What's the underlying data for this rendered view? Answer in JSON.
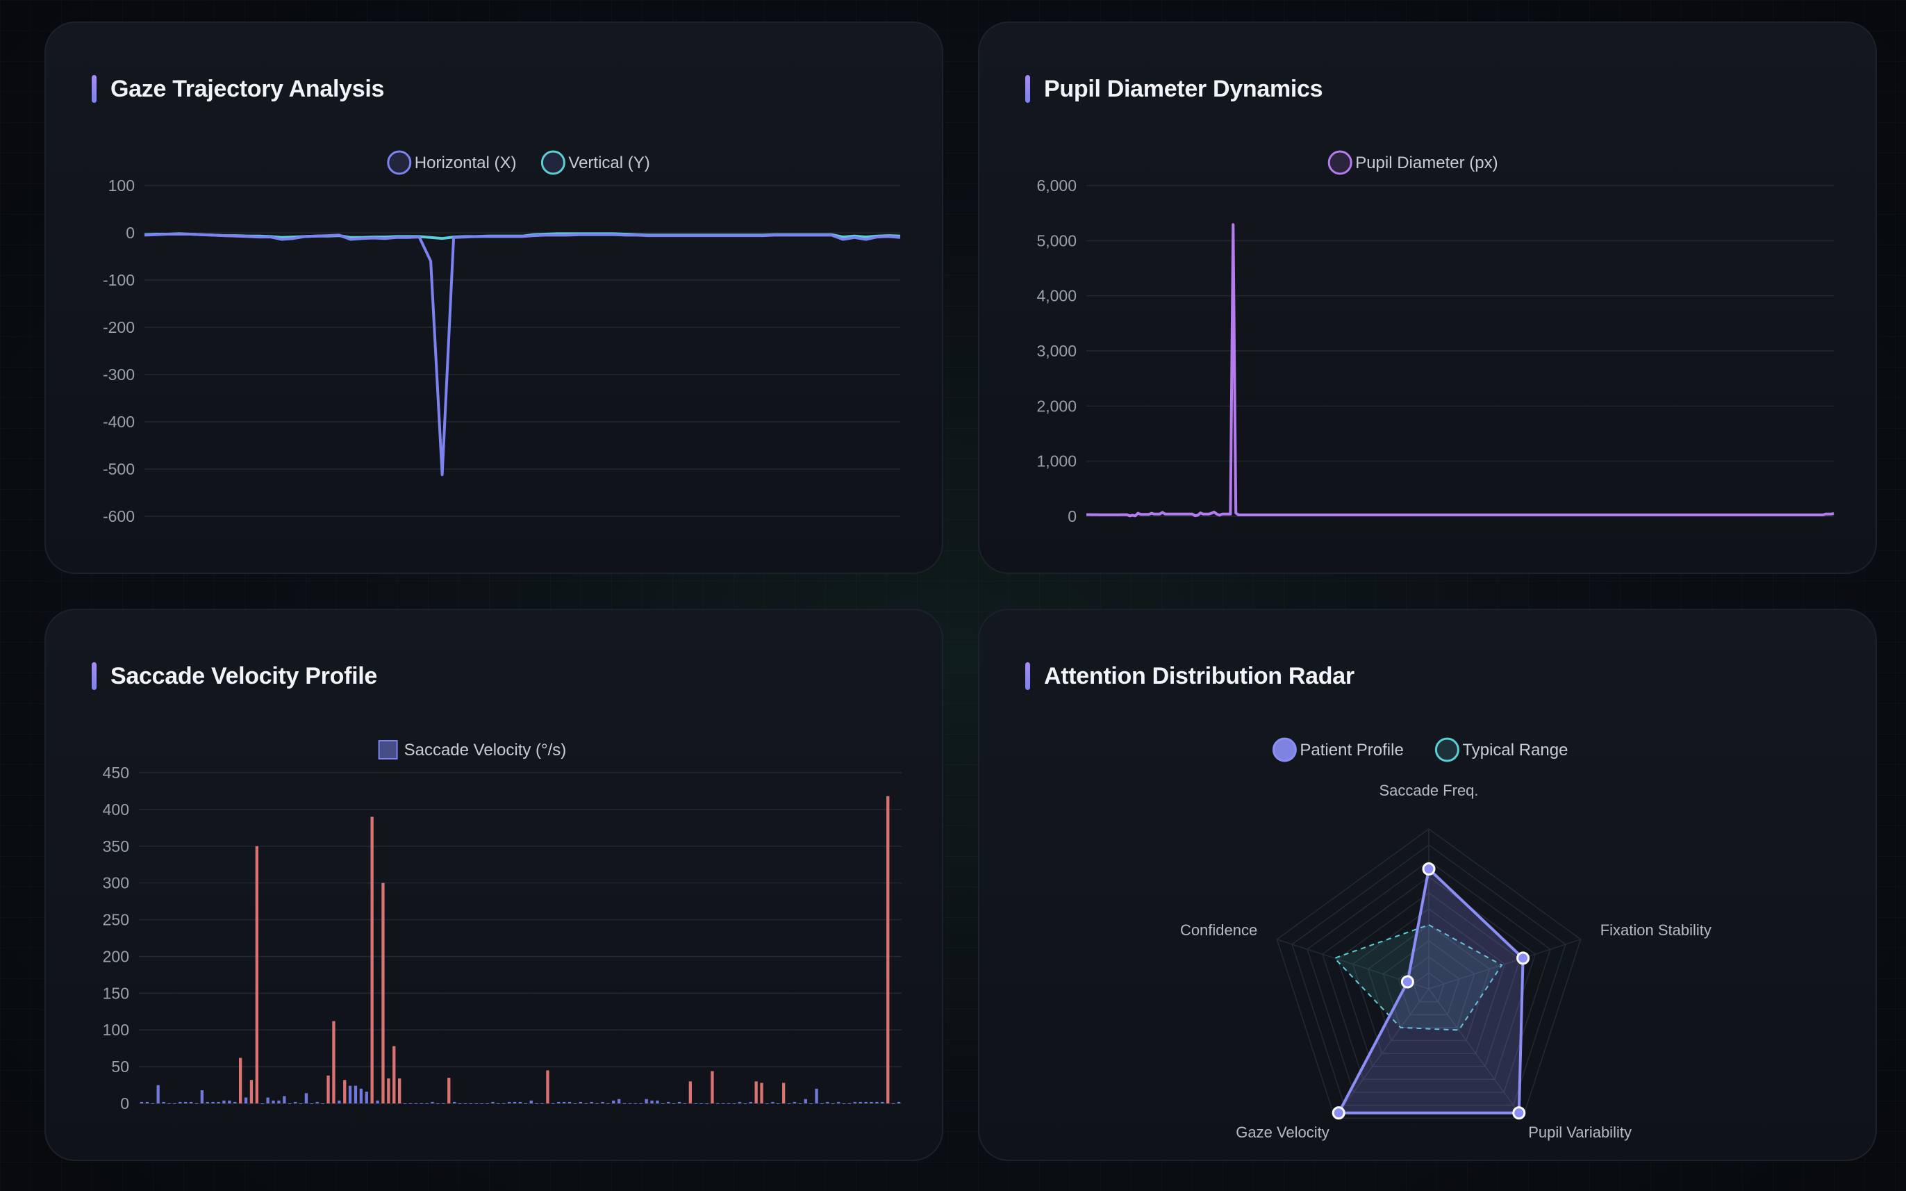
{
  "chart_data": [
    {
      "type": "line",
      "title": "Gaze Trajectory Analysis",
      "ylim": [
        -600,
        100
      ],
      "yticks": [
        100,
        0,
        -100,
        -200,
        -300,
        -400,
        -500,
        -600
      ],
      "grid": true,
      "legend": "top-center",
      "series": [
        {
          "name": "Horizontal (X)",
          "color": "#7c83f0",
          "values": [
            -5,
            -4,
            -3,
            -3,
            -3,
            -4,
            -5,
            -6,
            -7,
            -8,
            -9,
            -9,
            -14,
            -12,
            -8,
            -7,
            -6,
            -5,
            -14,
            -12,
            -11,
            -12,
            -10,
            -10,
            -9,
            -60,
            -512,
            -10,
            -9,
            -8,
            -8,
            -8,
            -8,
            -8,
            -6,
            -5,
            -5,
            -5,
            -4,
            -4,
            -4,
            -4,
            -5,
            -5,
            -6,
            -6,
            -6,
            -6,
            -6,
            -6,
            -6,
            -6,
            -6,
            -6,
            -6,
            -5,
            -5,
            -5,
            -5,
            -5,
            -5,
            -14,
            -10,
            -14,
            -9,
            -8,
            -10
          ]
        },
        {
          "name": "Vertical (Y)",
          "color": "#5ccfd6",
          "values": [
            -4,
            -3,
            -3,
            -2,
            -3,
            -4,
            -5,
            -6,
            -6,
            -7,
            -7,
            -8,
            -10,
            -9,
            -8,
            -7,
            -7,
            -6,
            -10,
            -10,
            -9,
            -9,
            -8,
            -8,
            -8,
            -10,
            -12,
            -9,
            -8,
            -8,
            -7,
            -7,
            -7,
            -7,
            -4,
            -3,
            -2,
            -2,
            -2,
            -2,
            -2,
            -2,
            -3,
            -4,
            -5,
            -5,
            -5,
            -5,
            -5,
            -5,
            -5,
            -5,
            -5,
            -5,
            -5,
            -4,
            -4,
            -4,
            -4,
            -4,
            -4,
            -9,
            -7,
            -9,
            -7,
            -6,
            -7
          ]
        }
      ]
    },
    {
      "type": "line",
      "title": "Pupil Diameter Dynamics",
      "ylim": [
        0,
        6000
      ],
      "yticks": [
        "6,000",
        "5,000",
        "4,000",
        "3,000",
        "2,000",
        "1,000",
        "0"
      ],
      "grid": true,
      "legend": "top-center",
      "series": [
        {
          "name": "Pupil Diameter (px)",
          "color": "#b57cf0",
          "values": [
            30,
            30,
            28,
            28,
            28,
            26,
            26,
            26,
            26,
            26,
            26,
            26,
            26,
            28,
            28,
            28,
            8,
            20,
            8,
            55,
            35,
            35,
            35,
            35,
            55,
            40,
            40,
            40,
            70,
            40,
            40,
            40,
            40,
            40,
            40,
            40,
            40,
            40,
            40,
            40,
            10,
            20,
            60,
            40,
            40,
            40,
            55,
            75,
            40,
            20,
            40,
            40,
            40,
            40,
            5290,
            60,
            25,
            25,
            25,
            25,
            25,
            25,
            25,
            25,
            25,
            25,
            25,
            25,
            25,
            25,
            25,
            25,
            25,
            25,
            25,
            25,
            25,
            25,
            25,
            25,
            25,
            25,
            25,
            25,
            25,
            25,
            25,
            25,
            25,
            25,
            25,
            25,
            25,
            25,
            25,
            25,
            25,
            25,
            25,
            25,
            25,
            25,
            25,
            25,
            25,
            25,
            25,
            25,
            25,
            25,
            25,
            25,
            25,
            25,
            25,
            25,
            25,
            25,
            25,
            25,
            25,
            25,
            25,
            25,
            25,
            25,
            25,
            25,
            25,
            25,
            25,
            25,
            25,
            25,
            25,
            25,
            25,
            25,
            25,
            25,
            25,
            25,
            25,
            25,
            25,
            25,
            25,
            25,
            25,
            25,
            25,
            25,
            25,
            25,
            25,
            25,
            25,
            25,
            25,
            25,
            25,
            25,
            25,
            25,
            25,
            25,
            25,
            25,
            25,
            25,
            25,
            25,
            25,
            25,
            25,
            25,
            25,
            25,
            25,
            25,
            25,
            25,
            25,
            25,
            25,
            25,
            25,
            25,
            25,
            25,
            25,
            25,
            25,
            25,
            25,
            25,
            25,
            25,
            25,
            25,
            25,
            25,
            25,
            25,
            25,
            25,
            25,
            25,
            25,
            25,
            25,
            25,
            25,
            25,
            25,
            25,
            25,
            25,
            25,
            25,
            25,
            25,
            25,
            25,
            25,
            25,
            25,
            25,
            25,
            25,
            25,
            25,
            25,
            25,
            25,
            25,
            25,
            25,
            25,
            25,
            25,
            25,
            25,
            25,
            25,
            25,
            25,
            25,
            25,
            25,
            25,
            25,
            25,
            25,
            25,
            25,
            25,
            25,
            25,
            25,
            25,
            25,
            25,
            25,
            25,
            25,
            25,
            25,
            25,
            25,
            25,
            25,
            40,
            40,
            40,
            50
          ]
        }
      ]
    },
    {
      "type": "bar",
      "title": "Saccade Velocity Profile",
      "ylim": [
        0,
        450
      ],
      "yticks": [
        450,
        400,
        350,
        300,
        250,
        200,
        150,
        100,
        50,
        0
      ],
      "grid": true,
      "legend": "top-center",
      "series": [
        {
          "name": "Saccade Velocity (°/s)",
          "color": "#7c83f0",
          "highlight_color": "#e87878",
          "values": [
            2,
            2,
            0,
            25,
            2,
            0,
            0,
            2,
            2,
            2,
            0,
            18,
            2,
            2,
            2,
            4,
            4,
            2,
            62,
            8,
            32,
            350,
            0,
            8,
            4,
            4,
            10,
            0,
            2,
            0,
            14,
            0,
            2,
            0,
            38,
            112,
            4,
            32,
            24,
            24,
            20,
            16,
            390,
            4,
            300,
            34,
            78,
            34,
            0,
            0,
            0,
            0,
            0,
            2,
            0,
            0,
            35,
            2,
            0,
            0,
            0,
            0,
            0,
            0,
            2,
            0,
            0,
            2,
            2,
            2,
            0,
            4,
            0,
            0,
            45,
            0,
            2,
            2,
            2,
            0,
            2,
            0,
            2,
            0,
            2,
            0,
            4,
            6,
            0,
            0,
            0,
            0,
            6,
            4,
            4,
            0,
            2,
            0,
            2,
            0,
            30,
            0,
            0,
            0,
            44,
            0,
            0,
            0,
            0,
            2,
            0,
            2,
            30,
            28,
            0,
            2,
            0,
            28,
            0,
            2,
            0,
            6,
            0,
            20,
            0,
            2,
            0,
            2,
            0,
            0,
            2,
            2,
            2,
            2,
            2,
            2,
            418,
            0,
            2
          ],
          "highlight_above": 25
        }
      ]
    },
    {
      "type": "radar",
      "title": "Attention Distribution Radar",
      "categories": [
        "Saccade Freq.",
        "Fixation Stability",
        "Pupil Variability",
        "Gaze Velocity",
        "Confidence"
      ],
      "max": 100,
      "legend": "top-center",
      "series": [
        {
          "name": "Patient Profile",
          "color": "#8b8ff5",
          "values": [
            75,
            62,
            96,
            96,
            14
          ]
        },
        {
          "name": "Typical Range",
          "color": "#5ccfd6",
          "values": [
            40,
            48,
            32,
            30,
            62
          ]
        }
      ]
    }
  ]
}
